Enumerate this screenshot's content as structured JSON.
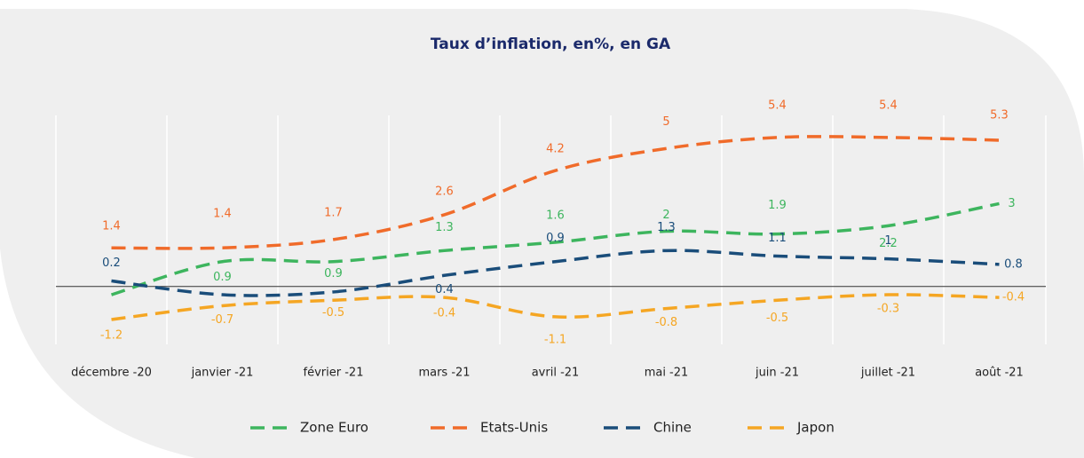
{
  "chart_data": {
    "type": "line",
    "title": "Taux d’inflation, en%, en GA",
    "categories": [
      "décembre -20",
      "janvier -21",
      "février -21",
      "mars -21",
      "avril -21",
      "mai -21",
      "juin -21",
      "juillet -21",
      "août -21"
    ],
    "series": [
      {
        "name": "Zone Euro",
        "color": "#3db55e",
        "values": [
          -0.3,
          0.9,
          0.9,
          1.3,
          1.6,
          2,
          1.9,
          2.2,
          3
        ],
        "value_labels": [
          null,
          "0.9",
          "0.9",
          "1.3",
          "1.6",
          "2",
          "1.9",
          "2.2",
          "3"
        ]
      },
      {
        "name": "Etats-Unis",
        "color": "#f06b2a",
        "values": [
          1.4,
          1.4,
          1.7,
          2.6,
          4.2,
          5,
          5.4,
          5.4,
          5.3
        ]
      },
      {
        "name": "Chine",
        "color": "#1a4d7a",
        "values": [
          0.2,
          -0.3,
          -0.2,
          0.4,
          0.9,
          1.3,
          1.1,
          1,
          0.8
        ],
        "value_labels": [
          "0.2",
          null,
          null,
          "0.4",
          "0.9",
          "1.3",
          "1.1",
          "1",
          "0.8"
        ]
      },
      {
        "name": "Japon",
        "color": "#f5a623",
        "values": [
          -1.2,
          -0.7,
          -0.5,
          -0.4,
          -1.1,
          -0.8,
          -0.5,
          -0.3,
          -0.4
        ]
      }
    ],
    "ylim": [
      -2.1,
      6.2
    ],
    "legend": "bottom"
  }
}
